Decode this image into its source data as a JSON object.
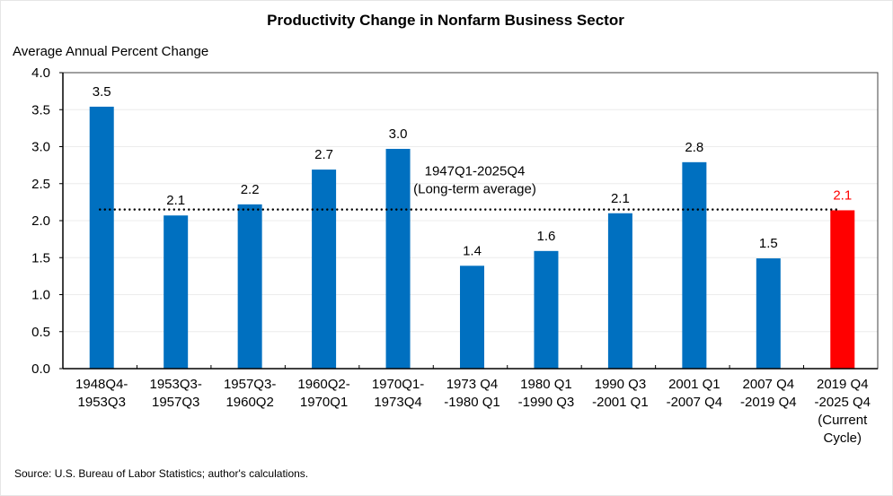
{
  "chart_data": {
    "type": "bar",
    "title": "Productivity Change in Nonfarm Business Sector",
    "ylabel": "Average Annual Percent Change",
    "xlabel": "",
    "ylim": [
      0,
      4.0
    ],
    "yticks": [
      "0.0",
      "0.5",
      "1.0",
      "1.5",
      "2.0",
      "2.5",
      "3.0",
      "3.5",
      "4.0"
    ],
    "ytick_values": [
      0,
      0.5,
      1.0,
      1.5,
      2.0,
      2.5,
      3.0,
      3.5,
      4.0
    ],
    "grid": true,
    "categories": [
      [
        "1948Q4-",
        "1953Q3"
      ],
      [
        "1953Q3-",
        "1957Q3"
      ],
      [
        "1957Q3-",
        "1960Q2"
      ],
      [
        "1960Q2-",
        "1970Q1"
      ],
      [
        "1970Q1-",
        "1973Q4"
      ],
      [
        "1973 Q4",
        "-1980 Q1"
      ],
      [
        "1980 Q1",
        "-1990 Q3"
      ],
      [
        "1990 Q3",
        "-2001 Q1"
      ],
      [
        "2001 Q1",
        "-2007 Q4"
      ],
      [
        "2007 Q4",
        "-2019 Q4"
      ],
      [
        "2019 Q4",
        "-2025 Q4",
        "(Current",
        "Cycle)"
      ]
    ],
    "values": [
      3.54,
      2.07,
      2.22,
      2.69,
      2.97,
      1.39,
      1.59,
      2.1,
      2.79,
      1.49,
      2.14
    ],
    "data_labels": [
      "3.5",
      "2.1",
      "2.2",
      "2.7",
      "3.0",
      "1.4",
      "1.6",
      "2.1",
      "2.8",
      "1.5",
      "2.1"
    ],
    "bar_colors": [
      "#0070C0",
      "#0070C0",
      "#0070C0",
      "#0070C0",
      "#0070C0",
      "#0070C0",
      "#0070C0",
      "#0070C0",
      "#0070C0",
      "#0070C0",
      "#FF0000"
    ],
    "label_colors": [
      "#000000",
      "#000000",
      "#000000",
      "#000000",
      "#000000",
      "#000000",
      "#000000",
      "#000000",
      "#000000",
      "#000000",
      "#FF0000"
    ],
    "reference_line": {
      "value": 2.15,
      "style": "dotted",
      "color": "#000000",
      "label_lines": [
        "1947Q1-2025Q4",
        "(Long-term average)"
      ]
    },
    "source": "Source:  U.S. Bureau of Labor Statistics; author's calculations."
  }
}
